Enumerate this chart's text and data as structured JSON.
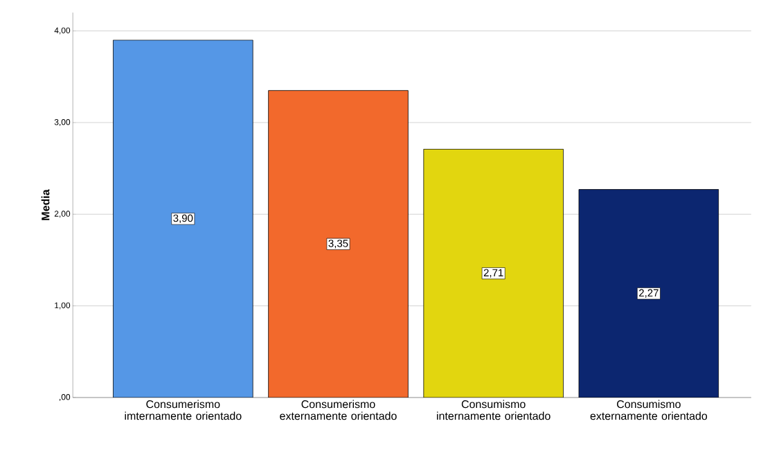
{
  "chart_data": {
    "type": "bar",
    "ylabel": "Media",
    "categories": [
      "Consumerismo imternamente orientado",
      "Consumerismo externamente orientado",
      "Consumismo internamente orientado",
      "Consumismo externamente orientado"
    ],
    "values": [
      3.9,
      3.35,
      2.71,
      2.27
    ],
    "value_labels": [
      "3,90",
      "3,35",
      "2,71",
      "2,27"
    ],
    "colors": [
      "#5597e6",
      "#f2692c",
      "#e2d60f",
      "#0c2670"
    ],
    "ylim": [
      0,
      4.2
    ],
    "yticks": [
      {
        "value": 0,
        "label": ",00"
      },
      {
        "value": 1,
        "label": "1,00"
      },
      {
        "value": 2,
        "label": "2,00"
      },
      {
        "value": 3,
        "label": "3,00"
      },
      {
        "value": 4,
        "label": "4,00"
      }
    ],
    "grid": "y"
  }
}
